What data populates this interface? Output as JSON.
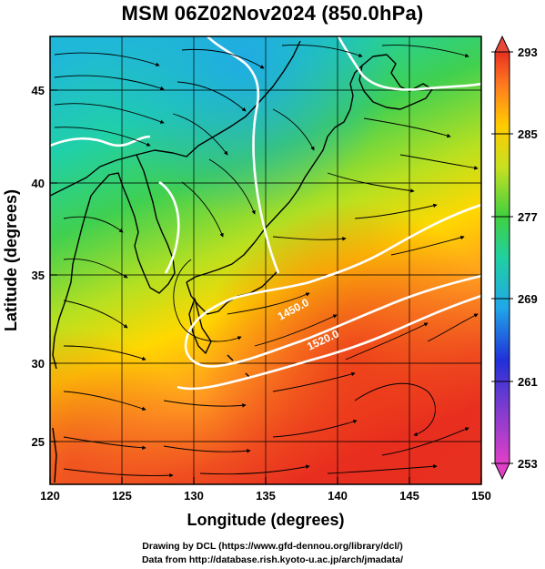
{
  "title": "MSM 06Z02Nov2024 (850.0hPa)",
  "x_axis": {
    "label": "Longitude (degrees)",
    "ticks": [
      "120",
      "125",
      "130",
      "135",
      "140",
      "145",
      "150"
    ],
    "range": [
      120,
      150
    ]
  },
  "y_axis": {
    "label": "Latitude  (degrees)",
    "ticks": [
      "25",
      "30",
      "35",
      "40",
      "45"
    ],
    "range": [
      22.4,
      47.6
    ]
  },
  "colorbar": {
    "ticks": [
      "253",
      "261",
      "269",
      "277",
      "285",
      "293"
    ],
    "range": [
      253,
      293
    ],
    "colors": [
      "#e040c8",
      "#3a3ad8",
      "#2aa0e8",
      "#20d0b0",
      "#30d048",
      "#c8e020",
      "#ffd000",
      "#ff8020",
      "#e83020"
    ]
  },
  "contour_labels": [
    "1450.0",
    "1520.0"
  ],
  "credits": {
    "line1": "Drawing by DCL (https://www.gfd-dennou.org/library/dcl/)",
    "line2": "Data from http://database.rish.kyoto-u.ac.jp/arch/jmadata/"
  }
}
